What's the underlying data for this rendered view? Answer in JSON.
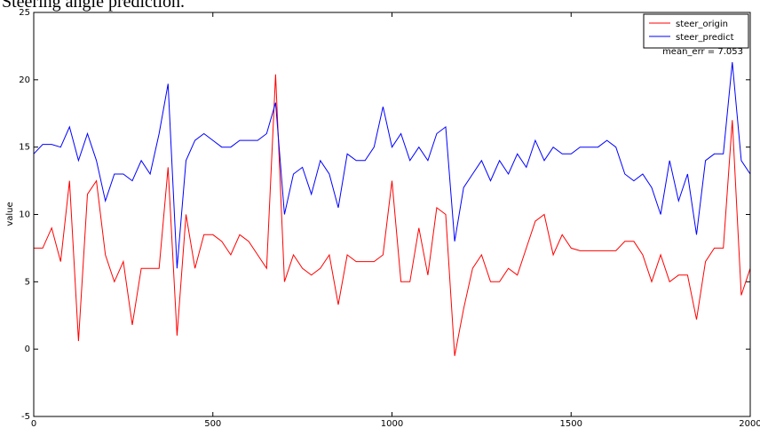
{
  "chart_data": {
    "type": "line",
    "title": "Steering angle prediction.",
    "y_label": "value",
    "annotation": "mean_err = 7.053",
    "x": [
      0,
      25,
      50,
      75,
      100,
      125,
      150,
      175,
      200,
      225,
      250,
      275,
      300,
      325,
      350,
      375,
      400,
      425,
      450,
      475,
      500,
      525,
      550,
      575,
      600,
      625,
      650,
      675,
      700,
      725,
      750,
      775,
      800,
      825,
      850,
      875,
      900,
      925,
      950,
      975,
      1000,
      1025,
      1050,
      1075,
      1100,
      1125,
      1150,
      1175,
      1200,
      1225,
      1250,
      1275,
      1300,
      1325,
      1350,
      1375,
      1400,
      1425,
      1450,
      1475,
      1500,
      1525,
      1550,
      1575,
      1600,
      1625,
      1650,
      1675,
      1700,
      1725,
      1750,
      1775,
      1800,
      1825,
      1850,
      1875,
      1900,
      1925,
      1950,
      1975,
      2000
    ],
    "series": [
      {
        "name": "steer_origin",
        "color": "#ff0000",
        "values": [
          7.5,
          7.5,
          9,
          6.5,
          12.5,
          0.6,
          11.5,
          12.5,
          7,
          5,
          6.5,
          1.8,
          6,
          6,
          6,
          13.5,
          1.0,
          10,
          6,
          8.5,
          8.5,
          8,
          7,
          8.5,
          8,
          7,
          6,
          20.4,
          5,
          7,
          6,
          5.5,
          6,
          7,
          3.3,
          7,
          6.5,
          6.5,
          6.5,
          7,
          12.5,
          5,
          5,
          9,
          5.5,
          10.5,
          10,
          -0.5,
          3,
          6,
          7,
          5,
          5,
          6,
          5.5,
          7.5,
          9.5,
          10,
          7,
          8.5,
          7.5,
          7.3,
          7.3,
          7.3,
          7.3,
          7.3,
          8,
          8,
          7,
          5,
          7,
          5,
          5.5,
          5.5,
          2.2,
          6.5,
          7.5,
          7.5,
          17,
          4,
          6
        ]
      },
      {
        "name": "steer_predict",
        "color": "#0000ff",
        "values": [
          14.5,
          15.2,
          15.2,
          15,
          16.5,
          14,
          16,
          14,
          11,
          13,
          13,
          12.5,
          14,
          13,
          16,
          19.7,
          6,
          14,
          15.5,
          16,
          15.5,
          15,
          15,
          15.5,
          15.5,
          15.5,
          16,
          18.3,
          10,
          13,
          13.5,
          11.5,
          14,
          13,
          10.5,
          14.5,
          14,
          14,
          15,
          18,
          15,
          16,
          14,
          15,
          14,
          16,
          16.5,
          8,
          12,
          13,
          14,
          12.5,
          14,
          13,
          14.5,
          13.5,
          15.5,
          14,
          15,
          14.5,
          14.5,
          15,
          15,
          15,
          15.5,
          15,
          13,
          12.5,
          13,
          12,
          10,
          14,
          11,
          13,
          8.5,
          14,
          14.5,
          14.5,
          21.3,
          14,
          13
        ]
      }
    ],
    "xlim": [
      0,
      2000
    ],
    "ylim": [
      -5,
      25
    ],
    "xticks": [
      0,
      500,
      1000,
      1500,
      2000
    ],
    "yticks": [
      -5,
      0,
      5,
      10,
      15,
      20,
      25
    ],
    "legend": "upper right"
  }
}
